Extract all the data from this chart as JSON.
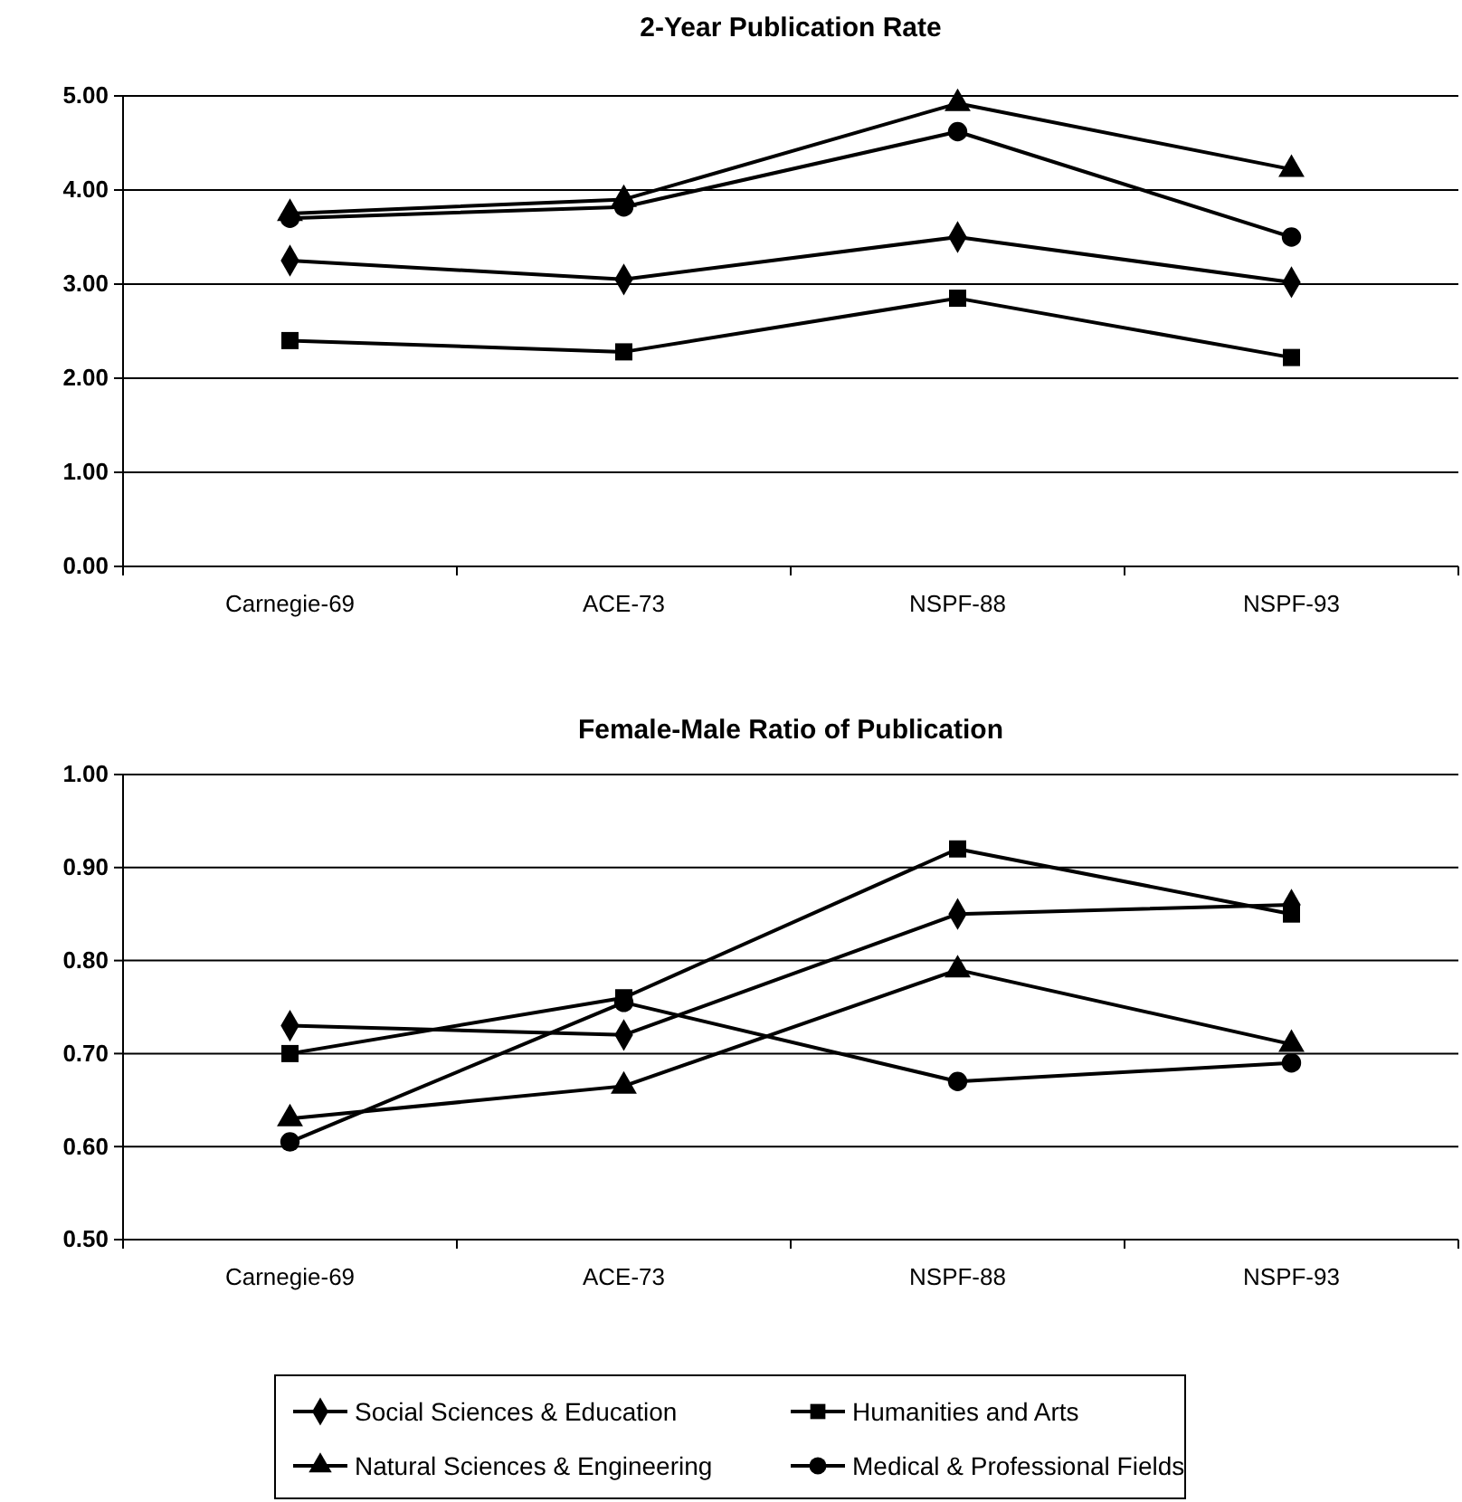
{
  "chart_data": [
    {
      "type": "line",
      "title": "2-Year Publication Rate",
      "categories": [
        "Carnegie-69",
        "ACE-73",
        "NSPF-88",
        "NSPF-93"
      ],
      "ylim": [
        0,
        5
      ],
      "yticks": [
        {
          "value": 0,
          "label": "0.00"
        },
        {
          "value": 1,
          "label": "1.00"
        },
        {
          "value": 2,
          "label": "2.00"
        },
        {
          "value": 3,
          "label": "3.00"
        },
        {
          "value": 4,
          "label": "4.00"
        },
        {
          "value": 5,
          "label": "5.00"
        }
      ],
      "grid": "y",
      "legend": false,
      "line_style": "solid",
      "series": [
        {
          "color": "#000000",
          "marker": "diamond",
          "values": [
            3.25,
            3.05,
            3.5,
            3.02
          ]
        },
        {
          "color": "#000000",
          "marker": "square",
          "values": [
            2.4,
            2.28,
            2.85,
            2.22
          ]
        },
        {
          "color": "#000000",
          "marker": "triangle",
          "values": [
            3.75,
            3.9,
            4.92,
            4.22
          ]
        },
        {
          "color": "#000000",
          "marker": "circle",
          "values": [
            3.7,
            3.82,
            4.62,
            3.5
          ]
        }
      ]
    },
    {
      "type": "line",
      "title": "Female-Male Ratio of Publication",
      "categories": [
        "Carnegie-69",
        "ACE-73",
        "NSPF-88",
        "NSPF-93"
      ],
      "ylim": [
        0.5,
        1
      ],
      "yticks": [
        {
          "value": 0.5,
          "label": "0.50"
        },
        {
          "value": 0.6,
          "label": "0.60"
        },
        {
          "value": 0.7,
          "label": "0.70"
        },
        {
          "value": 0.8,
          "label": "0.80"
        },
        {
          "value": 0.9,
          "label": "0.90"
        },
        {
          "value": 1,
          "label": "1.00"
        }
      ],
      "grid": "y",
      "legend": "bottom",
      "line_style": "solid",
      "series": [
        {
          "name": "Social Sciences & Education",
          "color": "#000000",
          "marker": "diamond",
          "values": [
            0.73,
            0.72,
            0.85,
            0.86
          ]
        },
        {
          "name": "Humanities and Arts",
          "color": "#000000",
          "marker": "square",
          "values": [
            0.7,
            0.76,
            0.92,
            0.85
          ]
        },
        {
          "name": "Natural Sciences & Engineering",
          "color": "#000000",
          "marker": "triangle",
          "values": [
            0.63,
            0.665,
            0.79,
            0.71
          ]
        },
        {
          "name": "Medical & Professional Fields",
          "color": "#000000",
          "marker": "circle",
          "values": [
            0.605,
            0.755,
            0.67,
            0.69
          ]
        }
      ]
    }
  ]
}
